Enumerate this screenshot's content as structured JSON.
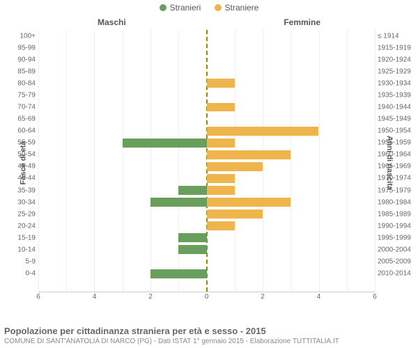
{
  "legend": {
    "male": {
      "label": "Stranieri",
      "color": "#6a9e5c"
    },
    "female": {
      "label": "Straniere",
      "color": "#f0b44c"
    }
  },
  "chart": {
    "type": "population-pyramid",
    "gender_left_label": "Maschi",
    "gender_right_label": "Femmine",
    "y_left_title": "Fasce di età",
    "y_right_title": "Anni di nascita",
    "x_max": 6,
    "x_ticks": [
      6,
      4,
      2,
      0,
      2,
      4,
      6
    ],
    "background_color": "#ffffff",
    "grid_color": "#eeeeee",
    "center_line_color": "#998800",
    "rows": [
      {
        "age": "100+",
        "birth": "≤ 1914",
        "m": 0,
        "f": 0
      },
      {
        "age": "95-99",
        "birth": "1915-1919",
        "m": 0,
        "f": 0
      },
      {
        "age": "90-94",
        "birth": "1920-1924",
        "m": 0,
        "f": 0
      },
      {
        "age": "85-89",
        "birth": "1925-1929",
        "m": 0,
        "f": 0
      },
      {
        "age": "80-84",
        "birth": "1930-1934",
        "m": 0,
        "f": 1
      },
      {
        "age": "75-79",
        "birth": "1935-1939",
        "m": 0,
        "f": 0
      },
      {
        "age": "70-74",
        "birth": "1940-1944",
        "m": 0,
        "f": 1
      },
      {
        "age": "65-69",
        "birth": "1945-1949",
        "m": 0,
        "f": 0
      },
      {
        "age": "60-64",
        "birth": "1950-1954",
        "m": 0,
        "f": 4
      },
      {
        "age": "55-59",
        "birth": "1955-1959",
        "m": 3,
        "f": 1
      },
      {
        "age": "50-54",
        "birth": "1960-1964",
        "m": 0,
        "f": 3
      },
      {
        "age": "45-49",
        "birth": "1965-1969",
        "m": 0,
        "f": 2
      },
      {
        "age": "40-44",
        "birth": "1970-1974",
        "m": 0,
        "f": 1
      },
      {
        "age": "35-39",
        "birth": "1975-1979",
        "m": 1,
        "f": 1
      },
      {
        "age": "30-34",
        "birth": "1980-1984",
        "m": 2,
        "f": 3
      },
      {
        "age": "25-29",
        "birth": "1985-1989",
        "m": 0,
        "f": 2
      },
      {
        "age": "20-24",
        "birth": "1990-1994",
        "m": 0,
        "f": 1
      },
      {
        "age": "15-19",
        "birth": "1995-1999",
        "m": 1,
        "f": 0
      },
      {
        "age": "10-14",
        "birth": "2000-2004",
        "m": 1,
        "f": 0
      },
      {
        "age": "5-9",
        "birth": "2005-2009",
        "m": 0,
        "f": 0
      },
      {
        "age": "0-4",
        "birth": "2010-2014",
        "m": 2,
        "f": 0
      }
    ]
  },
  "footer": {
    "title": "Popolazione per cittadinanza straniera per età e sesso - 2015",
    "subtitle": "COMUNE DI SANT'ANATOLIA DI NARCO (PG) - Dati ISTAT 1° gennaio 2015 - Elaborazione TUTTITALIA.IT"
  }
}
